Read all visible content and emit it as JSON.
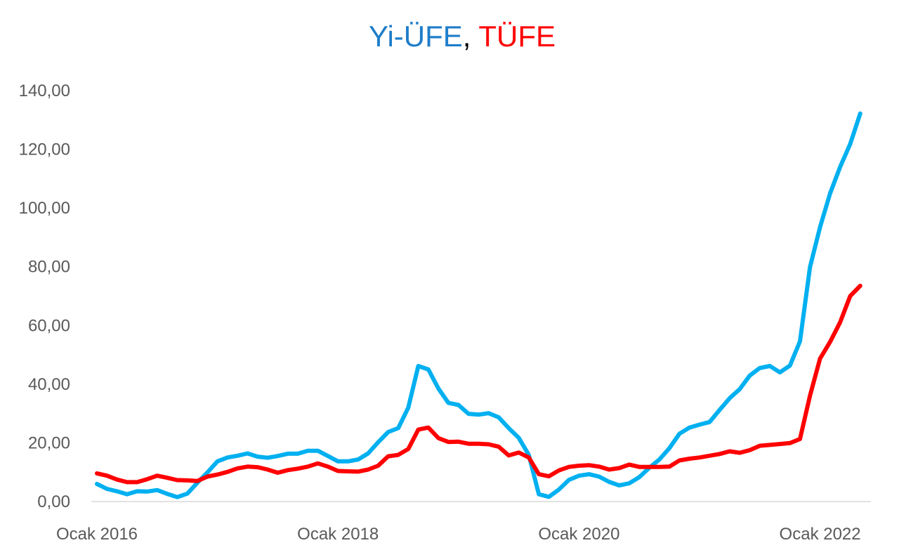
{
  "chart_data": {
    "type": "line",
    "title_parts": [
      {
        "text": "Yi-ÜFE",
        "color": "#1F7DC9"
      },
      {
        "text": ", ",
        "color": "#000000"
      },
      {
        "text": "TÜFE",
        "color": "#FF0000"
      }
    ],
    "xlabel": "",
    "ylabel": "",
    "x_start": "2016-01",
    "x_end": "2022-05",
    "x_ticks": [
      {
        "label": "Ocak 2016",
        "month_index": 0
      },
      {
        "label": "Ocak 2018",
        "month_index": 24
      },
      {
        "label": "Ocak 2020",
        "month_index": 48
      },
      {
        "label": "Ocak 2022",
        "month_index": 72
      }
    ],
    "ylim": [
      0,
      140
    ],
    "y_ticks": [
      "0,00",
      "20,00",
      "40,00",
      "60,00",
      "80,00",
      "100,00",
      "120,00",
      "140,00"
    ],
    "y_tick_values": [
      0,
      20,
      40,
      60,
      80,
      100,
      120,
      140
    ],
    "grid": false,
    "legend": "none",
    "series": [
      {
        "name": "Yi-ÜFE",
        "color": "#00B0F0",
        "values": [
          6.0,
          4.3,
          3.5,
          2.5,
          3.5,
          3.4,
          3.9,
          2.6,
          1.5,
          2.7,
          6.4,
          9.9,
          13.7,
          15.0,
          15.6,
          16.4,
          15.3,
          14.9,
          15.5,
          16.3,
          16.3,
          17.3,
          17.3,
          15.5,
          13.7,
          13.7,
          14.3,
          16.4,
          20.2,
          23.7,
          25.0,
          32.0,
          46.2,
          45.0,
          38.5,
          33.6,
          32.9,
          29.9,
          29.6,
          30.1,
          28.7,
          25.0,
          21.7,
          15.9,
          2.5,
          1.6,
          4.1,
          7.4,
          8.8,
          9.3,
          8.5,
          6.7,
          5.5,
          6.2,
          8.3,
          11.5,
          14.3,
          18.2,
          23.1,
          25.2,
          26.2,
          27.1,
          31.2,
          35.2,
          38.3,
          42.9,
          45.5,
          46.2,
          44.0,
          46.3,
          54.6,
          79.9,
          93.5,
          105.0,
          114.0,
          121.8,
          132.2
        ]
      },
      {
        "name": "TÜFE",
        "color": "#FF0000",
        "values": [
          9.6,
          8.8,
          7.5,
          6.6,
          6.6,
          7.6,
          8.8,
          8.1,
          7.3,
          7.2,
          7.0,
          8.5,
          9.2,
          10.1,
          11.3,
          11.9,
          11.7,
          10.9,
          9.8,
          10.7,
          11.2,
          11.9,
          13.0,
          11.9,
          10.4,
          10.3,
          10.2,
          10.9,
          12.2,
          15.4,
          15.9,
          17.9,
          24.5,
          25.2,
          21.6,
          20.3,
          20.4,
          19.7,
          19.7,
          19.5,
          18.7,
          15.7,
          16.7,
          15.0,
          9.3,
          8.6,
          10.6,
          11.8,
          12.2,
          12.4,
          11.9,
          10.9,
          11.4,
          12.6,
          11.8,
          11.8,
          11.8,
          11.9,
          14.0,
          14.6,
          15.0,
          15.6,
          16.2,
          17.1,
          16.6,
          17.5,
          19.0,
          19.3,
          19.6,
          19.9,
          21.3,
          36.1,
          48.7,
          54.4,
          61.1,
          70.0,
          73.5
        ]
      }
    ]
  }
}
